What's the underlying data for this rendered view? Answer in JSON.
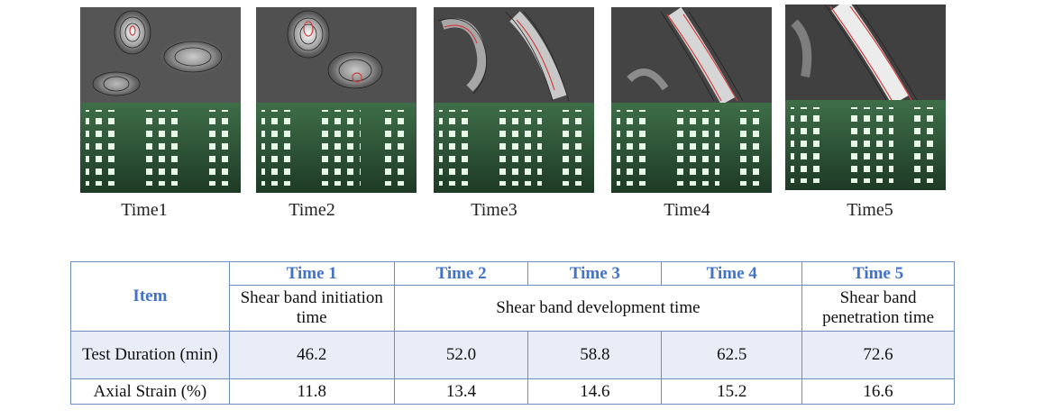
{
  "figure": {
    "captions": [
      "Time1",
      "Time2",
      "Time3",
      "Time4",
      "Time5"
    ]
  },
  "table": {
    "item_header": "Item",
    "time_headers": [
      "Time 1",
      "Time 2",
      "Time 3",
      "Time 4",
      "Time 5"
    ],
    "descriptions": {
      "initiation": "Shear band initiation time",
      "development": "Shear band development time",
      "penetration": "Shear band penetration time"
    },
    "rows": [
      {
        "label": "Test Duration (min)",
        "values": [
          "46.2",
          "52.0",
          "58.8",
          "62.5",
          "72.6"
        ]
      },
      {
        "label": "Axial Strain (%)",
        "values": [
          "11.8",
          "13.4",
          "14.6",
          "15.2",
          "16.6"
        ]
      }
    ]
  },
  "colors": {
    "header_blue": "#4472c4",
    "border": "#6f8fbf",
    "row_shade": "#e8edf7",
    "contour_highlight": "#d04040",
    "photo_green": "#2f5e3a"
  }
}
